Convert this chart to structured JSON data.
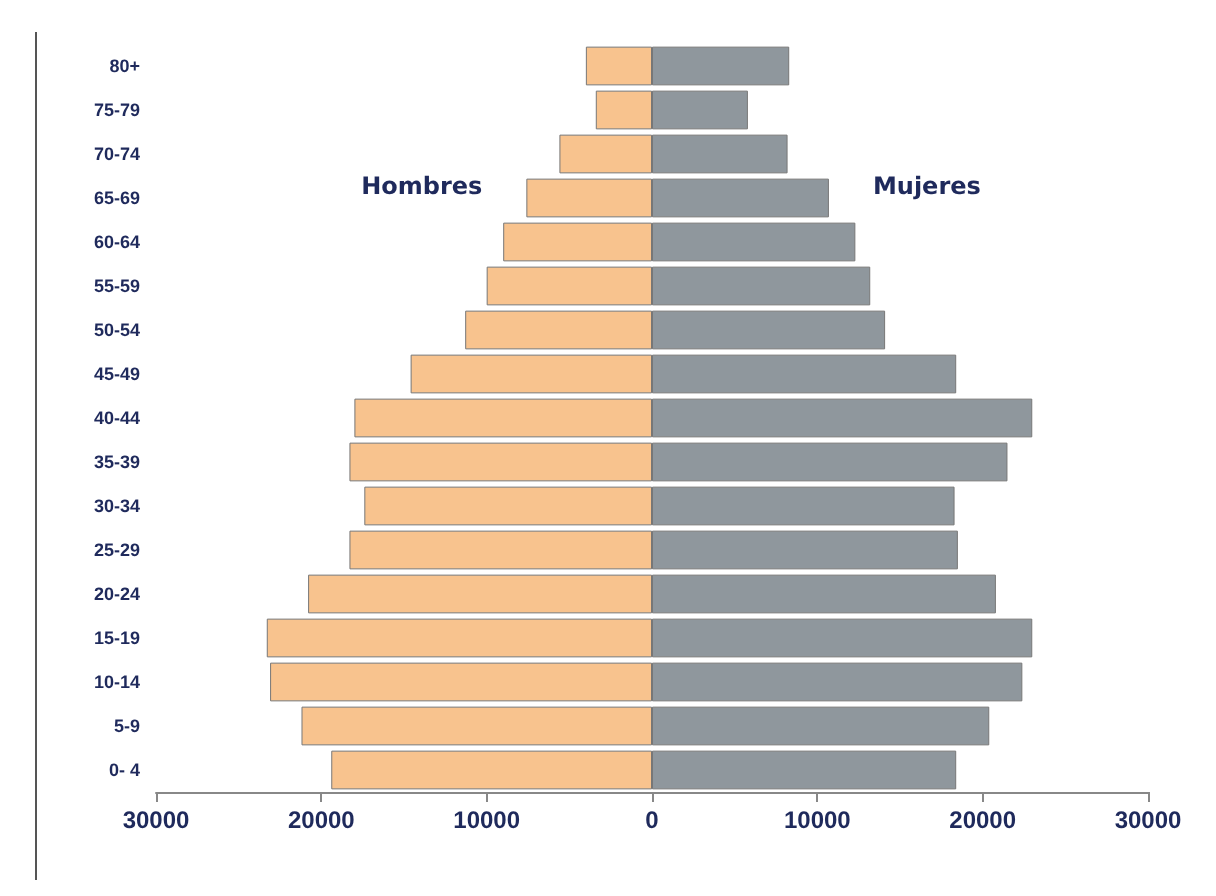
{
  "chart_data": {
    "type": "bar",
    "orientation": "horizontal",
    "categories": [
      "80+",
      "75-79",
      "70-74",
      "65-69",
      "60-64",
      "55-59",
      "50-54",
      "45-49",
      "40-44",
      "35-39",
      "30-34",
      "25-29",
      "20-24",
      "15-19",
      "10-14",
      "5-9",
      "0- 4"
    ],
    "series": [
      {
        "name": "Hombres",
        "color": "#f8c38e",
        "values": [
          -4000,
          -3400,
          -5600,
          -7600,
          -9000,
          -10000,
          -11300,
          -14600,
          -18000,
          -18300,
          -17400,
          -18300,
          -20800,
          -23300,
          -23100,
          -21200,
          -19400
        ]
      },
      {
        "name": "Mujeres",
        "color": "#8f979d",
        "values": [
          8300,
          5800,
          8200,
          10700,
          12300,
          13200,
          14100,
          18400,
          23000,
          21500,
          18300,
          18500,
          20800,
          23000,
          22400,
          20400,
          18400
        ]
      }
    ],
    "xlim": [
      -30000,
      30000
    ],
    "xticks": [
      {
        "value": -30000,
        "label": "30000"
      },
      {
        "value": -20000,
        "label": "20000"
      },
      {
        "value": -10000,
        "label": "10000"
      },
      0,
      10000,
      20000,
      30000
    ],
    "stacked": true,
    "grid": false,
    "legend": false
  }
}
